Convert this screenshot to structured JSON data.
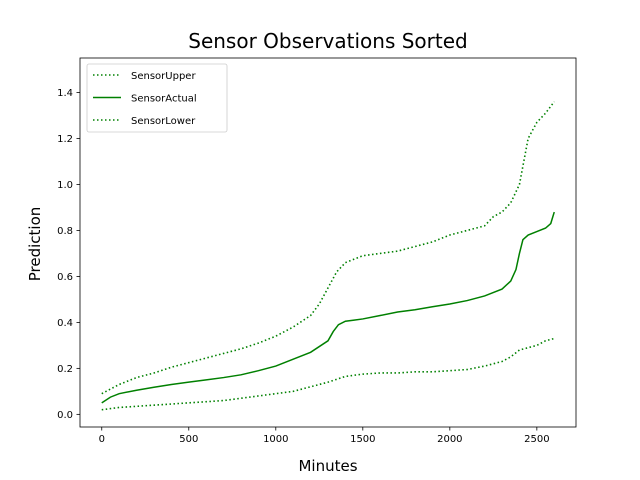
{
  "chart_data": {
    "type": "line",
    "title": "Sensor Observations Sorted",
    "xlabel": "Minutes",
    "ylabel": "Prediction",
    "xlim": [
      -125,
      2725
    ],
    "ylim": [
      -0.055,
      1.55
    ],
    "x_ticks": [
      0,
      500,
      1000,
      1500,
      2000,
      2500
    ],
    "y_ticks": [
      0.0,
      0.2,
      0.4,
      0.6,
      0.8,
      1.0,
      1.2,
      1.4
    ],
    "grid": false,
    "legend_position": "top-left",
    "color": "#008000",
    "series": [
      {
        "name": "SensorUpper",
        "style": "dotted",
        "x": [
          0,
          100,
          200,
          300,
          400,
          500,
          600,
          700,
          800,
          900,
          1000,
          1100,
          1200,
          1250,
          1300,
          1350,
          1400,
          1500,
          1600,
          1700,
          1800,
          1900,
          2000,
          2100,
          2200,
          2250,
          2300,
          2350,
          2400,
          2420,
          2450,
          2500,
          2550,
          2600
        ],
        "y": [
          0.09,
          0.13,
          0.16,
          0.18,
          0.205,
          0.225,
          0.245,
          0.265,
          0.285,
          0.31,
          0.34,
          0.38,
          0.43,
          0.48,
          0.55,
          0.62,
          0.66,
          0.69,
          0.7,
          0.71,
          0.73,
          0.75,
          0.78,
          0.8,
          0.82,
          0.86,
          0.88,
          0.92,
          1.0,
          1.08,
          1.2,
          1.27,
          1.31,
          1.36
        ]
      },
      {
        "name": "SensorActual",
        "style": "solid",
        "x": [
          0,
          50,
          100,
          200,
          300,
          400,
          500,
          600,
          700,
          800,
          900,
          1000,
          1100,
          1200,
          1300,
          1330,
          1360,
          1400,
          1450,
          1500,
          1600,
          1700,
          1800,
          1900,
          2000,
          2100,
          2200,
          2300,
          2350,
          2380,
          2400,
          2420,
          2450,
          2500,
          2550,
          2580,
          2600
        ],
        "y": [
          0.05,
          0.075,
          0.09,
          0.105,
          0.118,
          0.13,
          0.14,
          0.15,
          0.16,
          0.172,
          0.19,
          0.21,
          0.24,
          0.27,
          0.32,
          0.36,
          0.39,
          0.405,
          0.41,
          0.415,
          0.43,
          0.445,
          0.455,
          0.468,
          0.48,
          0.495,
          0.515,
          0.545,
          0.58,
          0.63,
          0.7,
          0.76,
          0.78,
          0.795,
          0.81,
          0.83,
          0.88
        ]
      },
      {
        "name": "SensorLower",
        "style": "dotted",
        "x": [
          0,
          100,
          200,
          300,
          400,
          500,
          600,
          700,
          800,
          900,
          1000,
          1100,
          1200,
          1300,
          1400,
          1500,
          1600,
          1700,
          1800,
          1900,
          2000,
          2100,
          2200,
          2300,
          2350,
          2400,
          2450,
          2500,
          2550,
          2600
        ],
        "y": [
          0.02,
          0.03,
          0.035,
          0.04,
          0.045,
          0.05,
          0.055,
          0.06,
          0.07,
          0.08,
          0.09,
          0.1,
          0.12,
          0.14,
          0.165,
          0.175,
          0.18,
          0.18,
          0.185,
          0.185,
          0.19,
          0.195,
          0.21,
          0.23,
          0.25,
          0.28,
          0.29,
          0.3,
          0.32,
          0.33
        ]
      }
    ]
  }
}
